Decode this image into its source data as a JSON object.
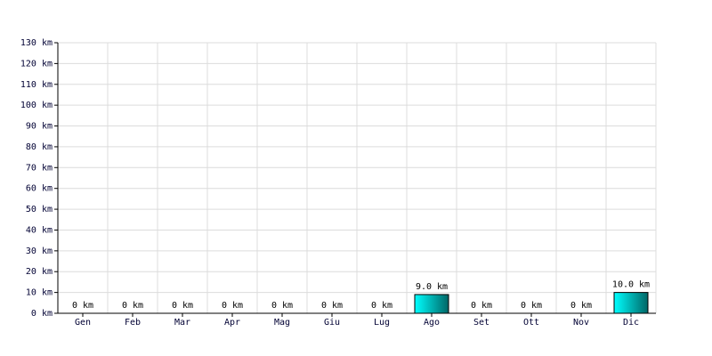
{
  "chart_data": {
    "type": "bar",
    "categories": [
      "Gen",
      "Feb",
      "Mar",
      "Apr",
      "Mag",
      "Giu",
      "Lug",
      "Ago",
      "Set",
      "Ott",
      "Nov",
      "Dic"
    ],
    "values": [
      0,
      0,
      0,
      0,
      0,
      0,
      0,
      9,
      0,
      0,
      0,
      10
    ],
    "value_labels": [
      "0 km",
      "0 km",
      "0 km",
      "0 km",
      "0 km",
      "0 km",
      "0 km",
      "9.0 km",
      "0 km",
      "0 km",
      "0 km",
      "10.0 km"
    ],
    "color": "#00c8c8",
    "ylim": [
      0,
      130
    ],
    "yticks": [
      {
        "value": 0,
        "label": "0 km"
      },
      {
        "value": 10,
        "label": "10 km"
      },
      {
        "value": 20,
        "label": "20 km"
      },
      {
        "value": 30,
        "label": "30 km"
      },
      {
        "value": 40,
        "label": "40 km"
      },
      {
        "value": 50,
        "label": "50 km"
      },
      {
        "value": 60,
        "label": "60 km"
      },
      {
        "value": 70,
        "label": "70 km"
      },
      {
        "value": 80,
        "label": "80 km"
      },
      {
        "value": 90,
        "label": "90 km"
      },
      {
        "value": 100,
        "label": "100 km"
      },
      {
        "value": 110,
        "label": "110 km"
      },
      {
        "value": 120,
        "label": "120 km"
      },
      {
        "value": 130,
        "label": "130 km"
      }
    ],
    "grid": true
  }
}
